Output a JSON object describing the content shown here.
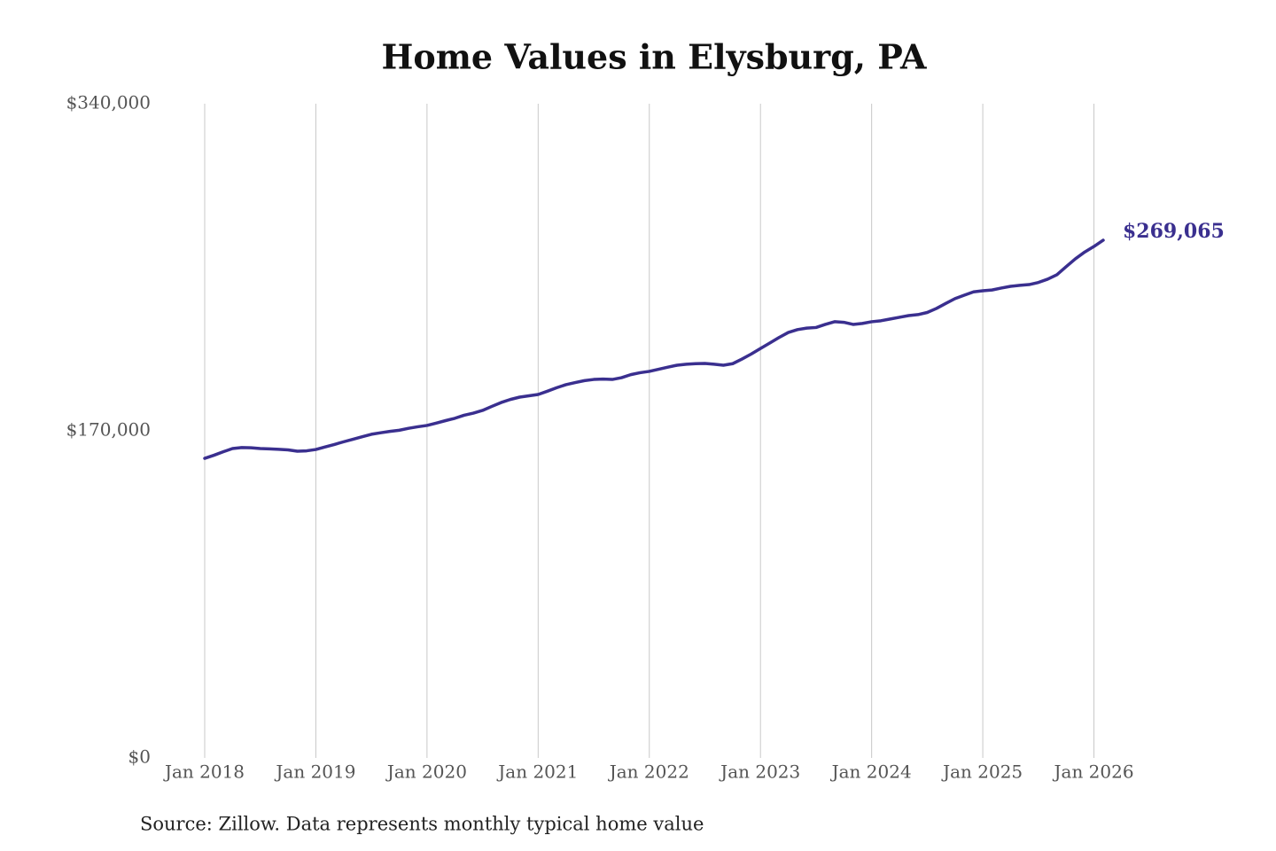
{
  "chart_data": {
    "type": "line",
    "title": "Home Values in Elysburg, PA",
    "source": "Source: Zillow. Data represents monthly typical home value",
    "color": "#3a2f8f",
    "x": [
      "2018-01",
      "2018-02",
      "2018-03",
      "2018-04",
      "2018-05",
      "2018-06",
      "2018-07",
      "2018-08",
      "2018-09",
      "2018-10",
      "2018-11",
      "2018-12",
      "2019-01",
      "2019-02",
      "2019-03",
      "2019-04",
      "2019-05",
      "2019-06",
      "2019-07",
      "2019-08",
      "2019-09",
      "2019-10",
      "2019-11",
      "2019-12",
      "2020-01",
      "2020-02",
      "2020-03",
      "2020-04",
      "2020-05",
      "2020-06",
      "2020-07",
      "2020-08",
      "2020-09",
      "2020-10",
      "2020-11",
      "2020-12",
      "2021-01",
      "2021-02",
      "2021-03",
      "2021-04",
      "2021-05",
      "2021-06",
      "2021-07",
      "2021-08",
      "2021-09",
      "2021-10",
      "2021-11",
      "2021-12",
      "2022-01",
      "2022-02",
      "2022-03",
      "2022-04",
      "2022-05",
      "2022-06",
      "2022-07",
      "2022-08",
      "2022-09",
      "2022-10",
      "2022-11",
      "2022-12",
      "2023-01",
      "2023-02",
      "2023-03",
      "2023-04",
      "2023-05",
      "2023-06",
      "2023-07",
      "2023-08",
      "2023-09",
      "2023-10",
      "2023-11",
      "2023-12",
      "2024-01",
      "2024-02",
      "2024-03",
      "2024-04",
      "2024-05",
      "2024-06",
      "2024-07",
      "2024-08",
      "2024-09",
      "2024-10",
      "2024-11",
      "2024-12",
      "2025-01",
      "2025-02",
      "2025-03",
      "2025-04",
      "2025-05",
      "2025-06",
      "2025-07",
      "2025-08",
      "2025-09",
      "2025-10",
      "2025-11",
      "2025-12",
      "2026-01",
      "2026-02"
    ],
    "values": [
      155700,
      157300,
      159100,
      160800,
      161300,
      161200,
      160800,
      160600,
      160400,
      160100,
      159400,
      159600,
      160300,
      161600,
      162900,
      164300,
      165600,
      166900,
      168200,
      169000,
      169700,
      170300,
      171300,
      172100,
      172800,
      174000,
      175300,
      176500,
      178100,
      179200,
      180600,
      182700,
      184700,
      186300,
      187500,
      188200,
      188900,
      190600,
      192400,
      194000,
      195100,
      196100,
      196700,
      196900,
      196700,
      197600,
      199200,
      200200,
      200900,
      202000,
      203100,
      204100,
      204600,
      204900,
      205000,
      204600,
      204100,
      204900,
      207300,
      209900,
      212800,
      215600,
      218500,
      221100,
      222600,
      223400,
      223700,
      225300,
      226700,
      226400,
      225300,
      225800,
      226700,
      227200,
      228100,
      229000,
      229900,
      230400,
      231500,
      233600,
      236200,
      238700,
      240500,
      242200,
      242800,
      243200,
      244200,
      245100,
      245600,
      246000,
      247100,
      248800,
      251100,
      255300,
      259400,
      262900,
      265800,
      269065
    ],
    "value_labels": [
      null,
      null,
      null,
      null,
      null,
      null,
      null,
      null,
      null,
      null,
      null,
      null,
      null,
      null,
      null,
      null,
      null,
      null,
      null,
      null,
      null,
      null,
      null,
      null,
      null,
      null,
      null,
      null,
      null,
      null,
      null,
      null,
      null,
      null,
      null,
      null,
      null,
      null,
      null,
      null,
      null,
      null,
      null,
      null,
      null,
      null,
      null,
      null,
      null,
      null,
      null,
      null,
      null,
      null,
      null,
      null,
      null,
      null,
      null,
      null,
      null,
      null,
      null,
      null,
      null,
      null,
      null,
      null,
      null,
      null,
      null,
      null,
      null,
      null,
      null,
      null,
      null,
      null,
      null,
      null,
      null,
      null,
      null,
      null,
      null,
      null,
      null,
      null,
      null,
      null,
      null,
      null,
      null,
      null,
      null,
      null,
      null,
      "$269,065"
    ],
    "xlim": [
      "2018-01",
      "2026-02"
    ],
    "xticks": [
      {
        "value": "2018-01",
        "label": "Jan 2018"
      },
      {
        "value": "2019-01",
        "label": "Jan 2019"
      },
      {
        "value": "2020-01",
        "label": "Jan 2020"
      },
      {
        "value": "2021-01",
        "label": "Jan 2021"
      },
      {
        "value": "2022-01",
        "label": "Jan 2022"
      },
      {
        "value": "2023-01",
        "label": "Jan 2023"
      },
      {
        "value": "2024-01",
        "label": "Jan 2024"
      },
      {
        "value": "2025-01",
        "label": "Jan 2025"
      },
      {
        "value": "2026-01",
        "label": "Jan 2026"
      }
    ],
    "ylim": [
      0,
      340000
    ],
    "yticks": [
      {
        "value": 0,
        "label": "$0"
      },
      {
        "value": 170000,
        "label": "$170,000"
      },
      {
        "value": 340000,
        "label": "$340,000"
      }
    ],
    "grid": true
  }
}
